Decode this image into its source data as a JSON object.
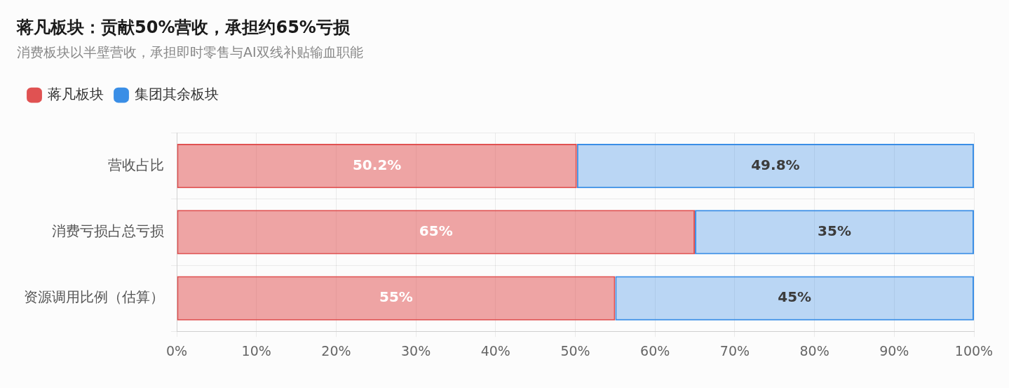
{
  "chart_data": {
    "type": "bar",
    "orientation": "horizontal",
    "stacked": true,
    "title": "蒋凡板块：贡献50%营收，承担约65%亏损",
    "subtitle": "消费板块以半壁营收，承担即时零售与AI双线补贴输血职能",
    "categories": [
      "营收占比",
      "消费亏损占总亏损",
      "资源调用比例（估算）"
    ],
    "series": [
      {
        "name": "蒋凡板块",
        "color": "#e05252",
        "values": [
          50.2,
          65,
          55
        ],
        "value_labels": [
          "50.2%",
          "65%",
          "55%"
        ]
      },
      {
        "name": "集团其余板块",
        "color": "#3a8ee6",
        "values": [
          49.8,
          35,
          45
        ],
        "value_labels": [
          "49.8%",
          "35%",
          "45%"
        ]
      }
    ],
    "xlim": [
      0,
      100
    ],
    "xticks": [
      {
        "value": 0,
        "label": "0%"
      },
      {
        "value": 10,
        "label": "10%"
      },
      {
        "value": 20,
        "label": "20%"
      },
      {
        "value": 30,
        "label": "30%"
      },
      {
        "value": 40,
        "label": "40%"
      },
      {
        "value": 50,
        "label": "50%"
      },
      {
        "value": 60,
        "label": "60%"
      },
      {
        "value": 70,
        "label": "70%"
      },
      {
        "value": 80,
        "label": "80%"
      },
      {
        "value": 90,
        "label": "90%"
      },
      {
        "value": 100,
        "label": "100%"
      }
    ],
    "grid": true,
    "legend": "top left"
  }
}
